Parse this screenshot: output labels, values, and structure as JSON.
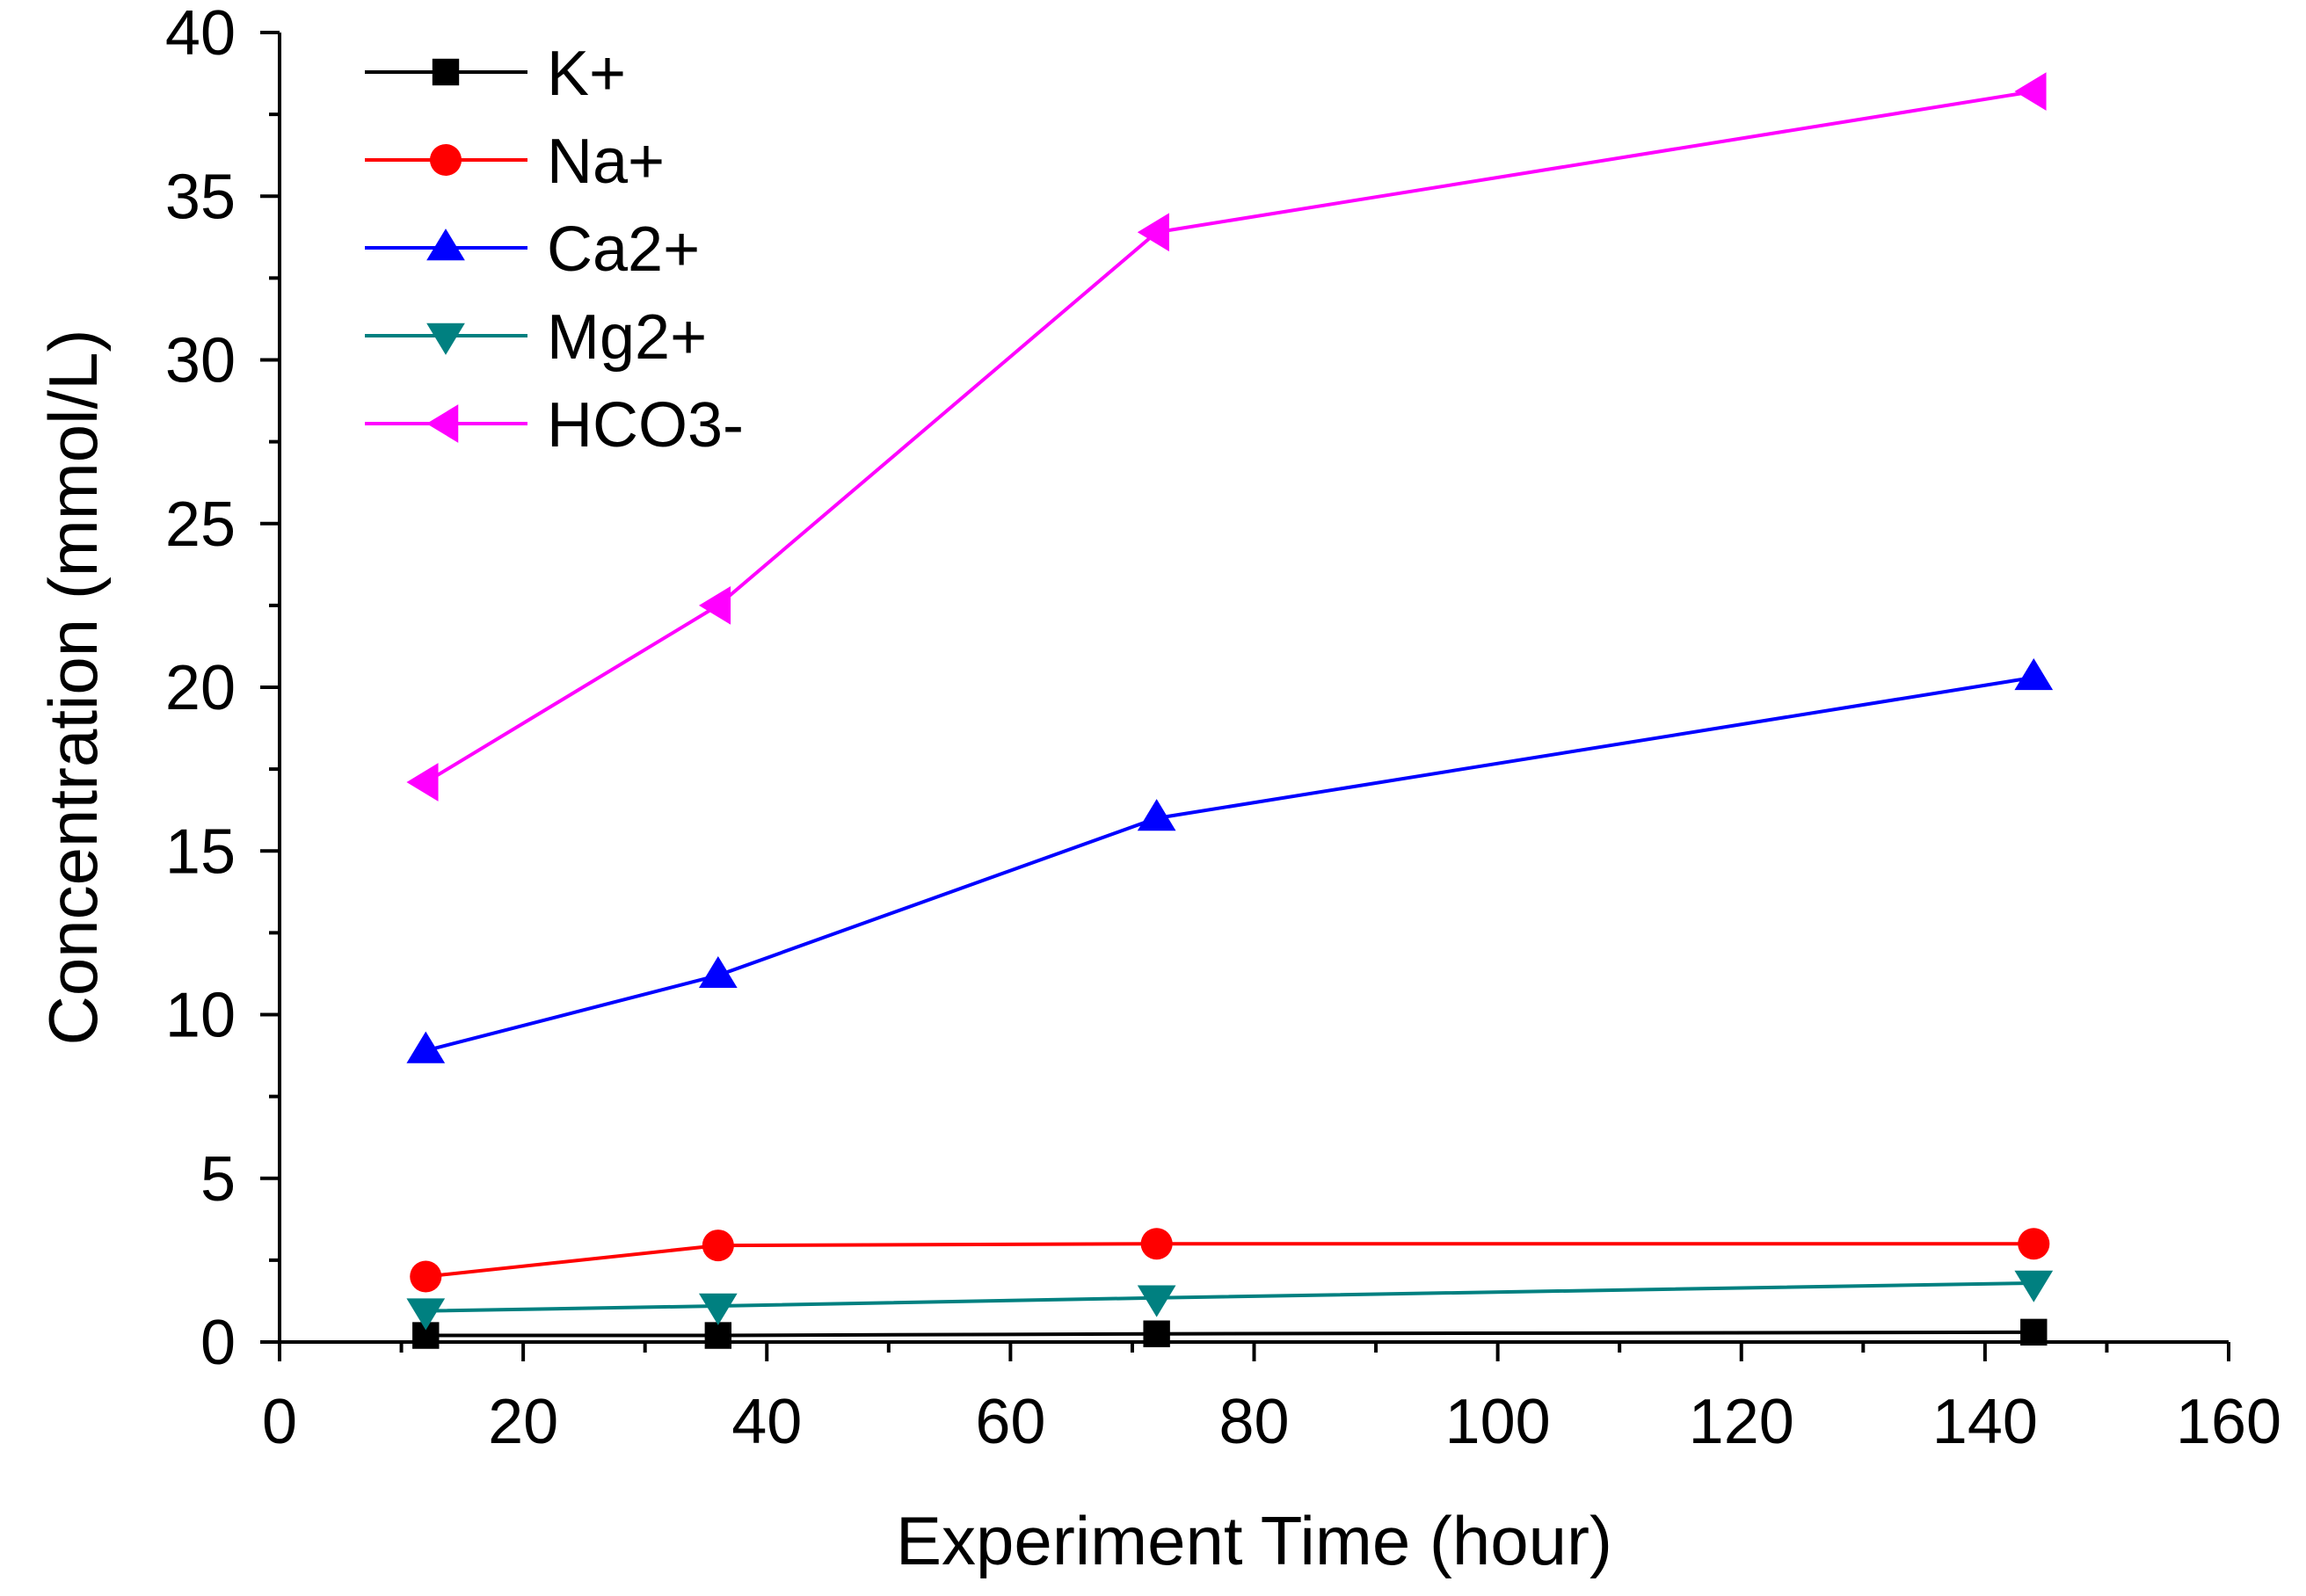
{
  "chart_data": {
    "type": "line",
    "title": "",
    "xlabel": "Experiment Time (hour)",
    "ylabel": "Concentration (mmol/L)",
    "xlim": [
      0,
      160
    ],
    "ylim": [
      0,
      40
    ],
    "xticks": [
      0,
      20,
      40,
      60,
      80,
      100,
      120,
      140,
      160
    ],
    "yticks": [
      0,
      5,
      10,
      15,
      20,
      25,
      30,
      35,
      40
    ],
    "x": [
      12,
      36,
      72,
      144
    ],
    "legend_position": "top-left",
    "grid": false,
    "series": [
      {
        "name": "K+",
        "color": "#000000",
        "marker": "square",
        "values": [
          0.2,
          0.2,
          0.25,
          0.3
        ]
      },
      {
        "name": "Na+",
        "color": "#ff0000",
        "marker": "circle",
        "values": [
          2.0,
          2.95,
          3.0,
          3.0
        ]
      },
      {
        "name": "Ca2+",
        "color": "#0000ff",
        "marker": "triangle-up",
        "values": [
          8.9,
          11.2,
          16.0,
          20.3
        ]
      },
      {
        "name": "Mg2+",
        "color": "#008080",
        "marker": "triangle-down",
        "values": [
          0.95,
          1.1,
          1.35,
          1.8
        ]
      },
      {
        "name": "HCO3-",
        "color": "#ff00ff",
        "marker": "triangle-left",
        "values": [
          17.1,
          22.5,
          33.9,
          38.2
        ]
      }
    ]
  }
}
